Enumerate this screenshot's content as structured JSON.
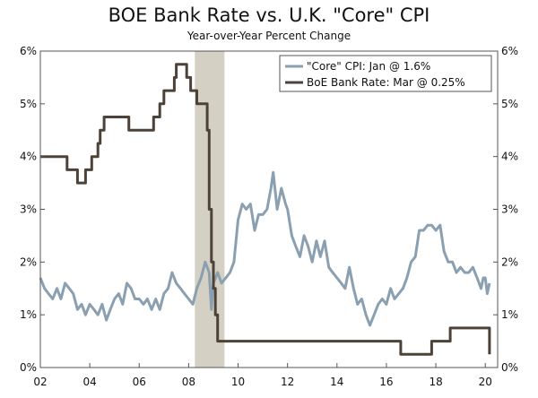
{
  "chart_data": {
    "type": "line",
    "title": "BOE Bank Rate vs. U.K. \"Core\" CPI",
    "subtitle": "Year-over-Year Percent Change",
    "xlabel": "",
    "ylabel": "",
    "xlim": [
      2002.0,
      2020.5
    ],
    "ylim": [
      0,
      6
    ],
    "x_ticks": [
      2002,
      2004,
      2006,
      2008,
      2010,
      2012,
      2014,
      2016,
      2018,
      2020
    ],
    "x_tick_labels": [
      "02",
      "04",
      "06",
      "08",
      "10",
      "12",
      "14",
      "16",
      "18",
      "20"
    ],
    "y_ticks": [
      0,
      1,
      2,
      3,
      4,
      5,
      6
    ],
    "y_tick_labels": [
      "0%",
      "1%",
      "2%",
      "3%",
      "4%",
      "5%",
      "6%"
    ],
    "legend_position": "top-right",
    "recession": {
      "start": 2008.25,
      "end": 2009.45,
      "color": "#d5d0c4"
    },
    "series": [
      {
        "name": "\"Core\" CPI: Jan @ 1.6%",
        "color": "#8aa0b1",
        "points": [
          [
            2002.0,
            1.7
          ],
          [
            2002.17,
            1.5
          ],
          [
            2002.33,
            1.4
          ],
          [
            2002.5,
            1.3
          ],
          [
            2002.67,
            1.5
          ],
          [
            2002.83,
            1.3
          ],
          [
            2003.0,
            1.6
          ],
          [
            2003.17,
            1.5
          ],
          [
            2003.33,
            1.4
          ],
          [
            2003.5,
            1.1
          ],
          [
            2003.67,
            1.2
          ],
          [
            2003.83,
            1.0
          ],
          [
            2004.0,
            1.2
          ],
          [
            2004.17,
            1.1
          ],
          [
            2004.33,
            1.0
          ],
          [
            2004.5,
            1.2
          ],
          [
            2004.67,
            0.9
          ],
          [
            2004.83,
            1.1
          ],
          [
            2005.0,
            1.3
          ],
          [
            2005.17,
            1.4
          ],
          [
            2005.33,
            1.2
          ],
          [
            2005.5,
            1.6
          ],
          [
            2005.67,
            1.5
          ],
          [
            2005.83,
            1.3
          ],
          [
            2006.0,
            1.3
          ],
          [
            2006.17,
            1.2
          ],
          [
            2006.33,
            1.3
          ],
          [
            2006.5,
            1.1
          ],
          [
            2006.67,
            1.3
          ],
          [
            2006.83,
            1.1
          ],
          [
            2007.0,
            1.4
          ],
          [
            2007.17,
            1.5
          ],
          [
            2007.33,
            1.8
          ],
          [
            2007.5,
            1.6
          ],
          [
            2007.67,
            1.5
          ],
          [
            2007.83,
            1.4
          ],
          [
            2008.0,
            1.3
          ],
          [
            2008.17,
            1.2
          ],
          [
            2008.33,
            1.5
          ],
          [
            2008.5,
            1.7
          ],
          [
            2008.67,
            2.0
          ],
          [
            2008.83,
            1.8
          ],
          [
            2008.92,
            1.1
          ],
          [
            2009.0,
            1.6
          ],
          [
            2009.17,
            1.8
          ],
          [
            2009.33,
            1.6
          ],
          [
            2009.5,
            1.7
          ],
          [
            2009.67,
            1.8
          ],
          [
            2009.83,
            2.0
          ],
          [
            2010.0,
            2.8
          ],
          [
            2010.17,
            3.1
          ],
          [
            2010.33,
            3.0
          ],
          [
            2010.5,
            3.1
          ],
          [
            2010.67,
            2.6
          ],
          [
            2010.83,
            2.9
          ],
          [
            2011.0,
            2.9
          ],
          [
            2011.17,
            3.0
          ],
          [
            2011.33,
            3.4
          ],
          [
            2011.42,
            3.7
          ],
          [
            2011.58,
            3.0
          ],
          [
            2011.75,
            3.4
          ],
          [
            2011.92,
            3.1
          ],
          [
            2012.0,
            3.0
          ],
          [
            2012.17,
            2.5
          ],
          [
            2012.33,
            2.3
          ],
          [
            2012.5,
            2.1
          ],
          [
            2012.67,
            2.5
          ],
          [
            2012.83,
            2.3
          ],
          [
            2013.0,
            2.0
          ],
          [
            2013.17,
            2.4
          ],
          [
            2013.33,
            2.1
          ],
          [
            2013.5,
            2.4
          ],
          [
            2013.67,
            1.9
          ],
          [
            2013.83,
            1.8
          ],
          [
            2014.0,
            1.7
          ],
          [
            2014.17,
            1.6
          ],
          [
            2014.33,
            1.5
          ],
          [
            2014.5,
            1.9
          ],
          [
            2014.67,
            1.5
          ],
          [
            2014.83,
            1.2
          ],
          [
            2015.0,
            1.3
          ],
          [
            2015.17,
            1.0
          ],
          [
            2015.33,
            0.8
          ],
          [
            2015.5,
            1.0
          ],
          [
            2015.67,
            1.2
          ],
          [
            2015.83,
            1.3
          ],
          [
            2016.0,
            1.2
          ],
          [
            2016.17,
            1.5
          ],
          [
            2016.33,
            1.3
          ],
          [
            2016.5,
            1.4
          ],
          [
            2016.67,
            1.5
          ],
          [
            2016.83,
            1.7
          ],
          [
            2017.0,
            2.0
          ],
          [
            2017.17,
            2.1
          ],
          [
            2017.33,
            2.6
          ],
          [
            2017.5,
            2.6
          ],
          [
            2017.67,
            2.7
          ],
          [
            2017.83,
            2.7
          ],
          [
            2018.0,
            2.6
          ],
          [
            2018.17,
            2.7
          ],
          [
            2018.33,
            2.2
          ],
          [
            2018.5,
            2.0
          ],
          [
            2018.67,
            2.0
          ],
          [
            2018.83,
            1.8
          ],
          [
            2019.0,
            1.9
          ],
          [
            2019.17,
            1.8
          ],
          [
            2019.33,
            1.8
          ],
          [
            2019.5,
            1.9
          ],
          [
            2019.67,
            1.7
          ],
          [
            2019.83,
            1.5
          ],
          [
            2019.92,
            1.7
          ],
          [
            2020.0,
            1.7
          ],
          [
            2020.08,
            1.4
          ],
          [
            2020.17,
            1.6
          ]
        ]
      },
      {
        "name": "BoE Bank Rate: Mar @ 0.25%",
        "color": "#4d4238",
        "points": [
          [
            2002.0,
            4.0
          ],
          [
            2003.08,
            4.0
          ],
          [
            2003.08,
            3.75
          ],
          [
            2003.5,
            3.75
          ],
          [
            2003.5,
            3.5
          ],
          [
            2003.83,
            3.5
          ],
          [
            2003.83,
            3.75
          ],
          [
            2004.08,
            3.75
          ],
          [
            2004.08,
            4.0
          ],
          [
            2004.33,
            4.0
          ],
          [
            2004.33,
            4.25
          ],
          [
            2004.42,
            4.25
          ],
          [
            2004.42,
            4.5
          ],
          [
            2004.58,
            4.5
          ],
          [
            2004.58,
            4.75
          ],
          [
            2005.58,
            4.75
          ],
          [
            2005.58,
            4.5
          ],
          [
            2006.58,
            4.5
          ],
          [
            2006.58,
            4.75
          ],
          [
            2006.83,
            4.75
          ],
          [
            2006.83,
            5.0
          ],
          [
            2007.0,
            5.0
          ],
          [
            2007.0,
            5.25
          ],
          [
            2007.42,
            5.25
          ],
          [
            2007.42,
            5.5
          ],
          [
            2007.5,
            5.5
          ],
          [
            2007.5,
            5.75
          ],
          [
            2007.92,
            5.75
          ],
          [
            2007.92,
            5.5
          ],
          [
            2008.08,
            5.5
          ],
          [
            2008.08,
            5.25
          ],
          [
            2008.33,
            5.25
          ],
          [
            2008.33,
            5.0
          ],
          [
            2008.75,
            5.0
          ],
          [
            2008.75,
            4.5
          ],
          [
            2008.83,
            4.5
          ],
          [
            2008.83,
            3.0
          ],
          [
            2008.92,
            3.0
          ],
          [
            2008.92,
            2.0
          ],
          [
            2009.0,
            2.0
          ],
          [
            2009.0,
            1.5
          ],
          [
            2009.08,
            1.5
          ],
          [
            2009.08,
            1.0
          ],
          [
            2009.17,
            1.0
          ],
          [
            2009.17,
            0.5
          ],
          [
            2016.58,
            0.5
          ],
          [
            2016.58,
            0.25
          ],
          [
            2017.83,
            0.25
          ],
          [
            2017.83,
            0.5
          ],
          [
            2018.58,
            0.5
          ],
          [
            2018.58,
            0.75
          ],
          [
            2020.17,
            0.75
          ],
          [
            2020.17,
            0.25
          ]
        ]
      }
    ]
  }
}
